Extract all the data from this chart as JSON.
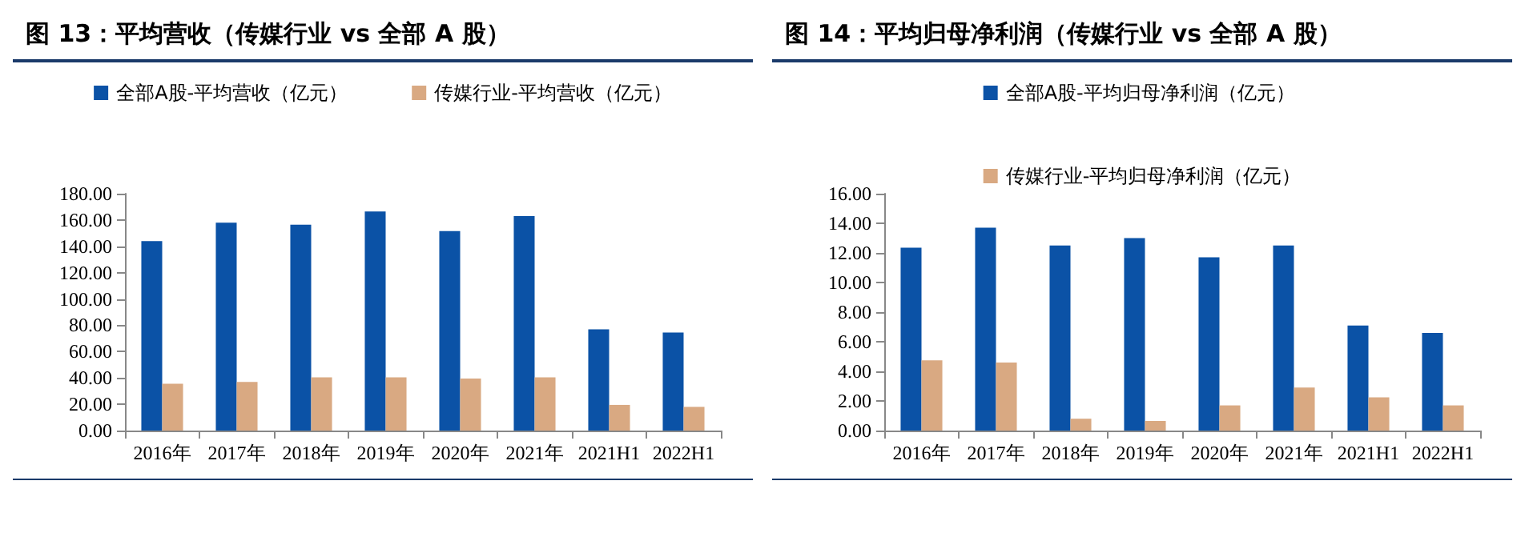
{
  "chart_data": [
    {
      "type": "bar",
      "title": "图 13：平均营收（传媒行业 vs 全部 A 股）",
      "categories": [
        "2016年",
        "2017年",
        "2018年",
        "2019年",
        "2020年",
        "2021年",
        "2021H1",
        "2022H1"
      ],
      "series": [
        {
          "name": "全部A股-平均营收（亿元）",
          "color": "#0b52a6",
          "values": [
            144,
            158,
            156.5,
            166.5,
            151.5,
            163,
            77,
            74.5
          ]
        },
        {
          "name": "传媒行业-平均营收（亿元）",
          "color": "#d9a982",
          "values": [
            35.5,
            37,
            40.5,
            40.5,
            39.5,
            40.5,
            19.5,
            18
          ]
        }
      ],
      "ylim": [
        0,
        180
      ],
      "yticks": [
        {
          "value": 0,
          "label": "0.00"
        },
        {
          "value": 20,
          "label": "20.00"
        },
        {
          "value": 40,
          "label": "40.00"
        },
        {
          "value": 60,
          "label": "60.00"
        },
        {
          "value": 80,
          "label": "80.00"
        },
        {
          "value": 100,
          "label": "100.00"
        },
        {
          "value": 120,
          "label": "120.00"
        },
        {
          "value": 140,
          "label": "140.00"
        },
        {
          "value": 160,
          "label": "160.00"
        },
        {
          "value": 180,
          "label": "180.00"
        }
      ],
      "grid": false,
      "legend": "top"
    },
    {
      "type": "bar",
      "title": "图 14：平均归母净利润（传媒行业 vs 全部 A 股）",
      "categories": [
        "2016年",
        "2017年",
        "2018年",
        "2019年",
        "2020年",
        "2021年",
        "2021H1",
        "2022H1"
      ],
      "series": [
        {
          "name": "全部A股-平均归母净利润（亿元）",
          "color": "#0b52a6",
          "values": [
            12.35,
            13.7,
            12.5,
            13,
            11.7,
            12.5,
            7.1,
            6.6
          ]
        },
        {
          "name": "传媒行业-平均归母净利润（亿元）",
          "color": "#d9a982",
          "values": [
            4.75,
            4.6,
            0.8,
            0.65,
            1.7,
            2.9,
            2.25,
            1.7
          ]
        }
      ],
      "ylim": [
        0,
        16
      ],
      "yticks": [
        {
          "value": 0,
          "label": "0.00"
        },
        {
          "value": 2,
          "label": "2.00"
        },
        {
          "value": 4,
          "label": "4.00"
        },
        {
          "value": 6,
          "label": "6.00"
        },
        {
          "value": 8,
          "label": "8.00"
        },
        {
          "value": 10,
          "label": "10.00"
        },
        {
          "value": 12,
          "label": "12.00"
        },
        {
          "value": 14,
          "label": "14.00"
        },
        {
          "value": 16,
          "label": "16.00"
        }
      ],
      "grid": false,
      "legend": "top"
    }
  ]
}
